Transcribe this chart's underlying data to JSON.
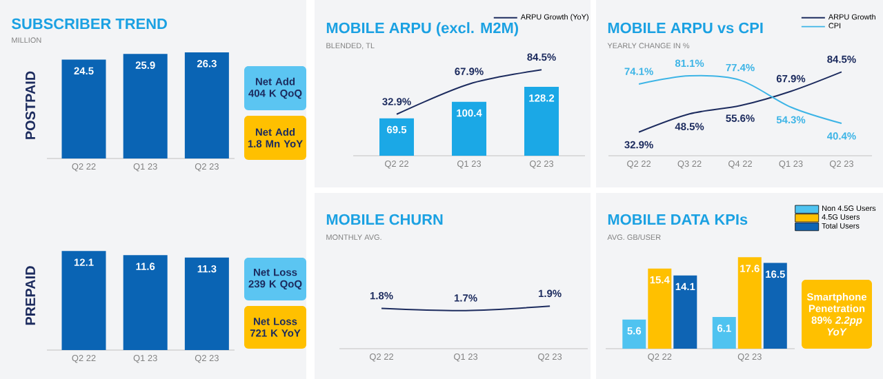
{
  "chart_data": [
    {
      "type": "bar",
      "title": "SUBSCRIBER TREND",
      "subtitle": "MILLION",
      "ylabel": "POSTPAID",
      "categories": [
        "Q2 22",
        "Q1 23",
        "Q2 23"
      ],
      "values": [
        24.5,
        25.9,
        26.3
      ],
      "color": "#0a64b4",
      "data_labels": true,
      "annotations": [
        "Net Add 404 K QoQ",
        "Net Add 1.8 Mn YoY"
      ]
    },
    {
      "type": "bar",
      "ylabel": "PREPAID",
      "categories": [
        "Q2 22",
        "Q1 23",
        "Q2 23"
      ],
      "values": [
        12.1,
        11.6,
        11.3
      ],
      "color": "#0a64b4",
      "data_labels": true,
      "annotations": [
        "Net Loss 239 K QoQ",
        "Net Loss 721 K YoY"
      ]
    },
    {
      "type": "bar",
      "title": "MOBILE ARPU (excl. M2M)",
      "subtitle": "BLENDED, TL",
      "categories": [
        "Q2 22",
        "Q1 23",
        "Q2 23"
      ],
      "series": [
        {
          "type": "bar",
          "color": "#1ba8e6",
          "values": [
            69.5,
            100.4,
            128.2
          ],
          "value_labels": [
            "69.5",
            "100.4",
            "128.2"
          ]
        },
        {
          "type": "line",
          "name": "ARPU Growth (YoY)",
          "axis": "y2",
          "color": "#1c2b5e",
          "values": [
            32.9,
            67.9,
            84.5
          ],
          "value_labels": [
            "32.9%",
            "67.9%",
            "84.5%"
          ]
        }
      ],
      "legend": "top right"
    },
    {
      "type": "line",
      "title": "MOBILE ARPU vs CPI",
      "subtitle": "YEARLY CHANGE IN %",
      "categories": [
        "Q2 22",
        "Q3 22",
        "Q4 22",
        "Q1 23",
        "Q2 23"
      ],
      "series": [
        {
          "name": "ARPU Growth",
          "color": "#1c2b5e",
          "values": [
            32.9,
            48.5,
            55.6,
            67.9,
            84.5
          ],
          "value_labels": [
            "32.9%",
            "48.5%",
            "55.6%",
            "67.9%",
            "84.5%"
          ]
        },
        {
          "name": "CPI",
          "color": "#3cb4e6",
          "values": [
            74.1,
            81.1,
            77.4,
            54.3,
            40.4
          ],
          "value_labels": [
            "74.1%",
            "81.1%",
            "77.4%",
            "54.3%",
            "40.4%"
          ]
        }
      ],
      "legend": "top right"
    },
    {
      "type": "line",
      "title": "MOBILE CHURN",
      "subtitle": "MONTHLY AVG.",
      "categories": [
        "Q2 22",
        "Q1 23",
        "Q2 23"
      ],
      "series": [
        {
          "color": "#1c2b5e",
          "values": [
            1.8,
            1.7,
            1.9
          ],
          "value_labels": [
            "1.8%",
            "1.7%",
            "1.9%"
          ]
        }
      ]
    },
    {
      "type": "bar",
      "title": "MOBILE DATA KPIs",
      "subtitle": "AVG. GB/USER",
      "categories": [
        "Q2 22",
        "Q2 23"
      ],
      "series": [
        {
          "name": "Non 4.5G Users",
          "color": "#4fc3f0",
          "values": [
            5.6,
            6.1
          ]
        },
        {
          "name": "4.5G Users",
          "color": "#ffc000",
          "values": [
            15.4,
            17.6
          ]
        },
        {
          "name": "Total Users",
          "color": "#0e64b4",
          "values": [
            14.1,
            16.5
          ]
        }
      ],
      "data_labels": true,
      "legend": "top right",
      "annotations": [
        "Smartphone Penetration 89% *2.2pp YoY*"
      ]
    }
  ]
}
